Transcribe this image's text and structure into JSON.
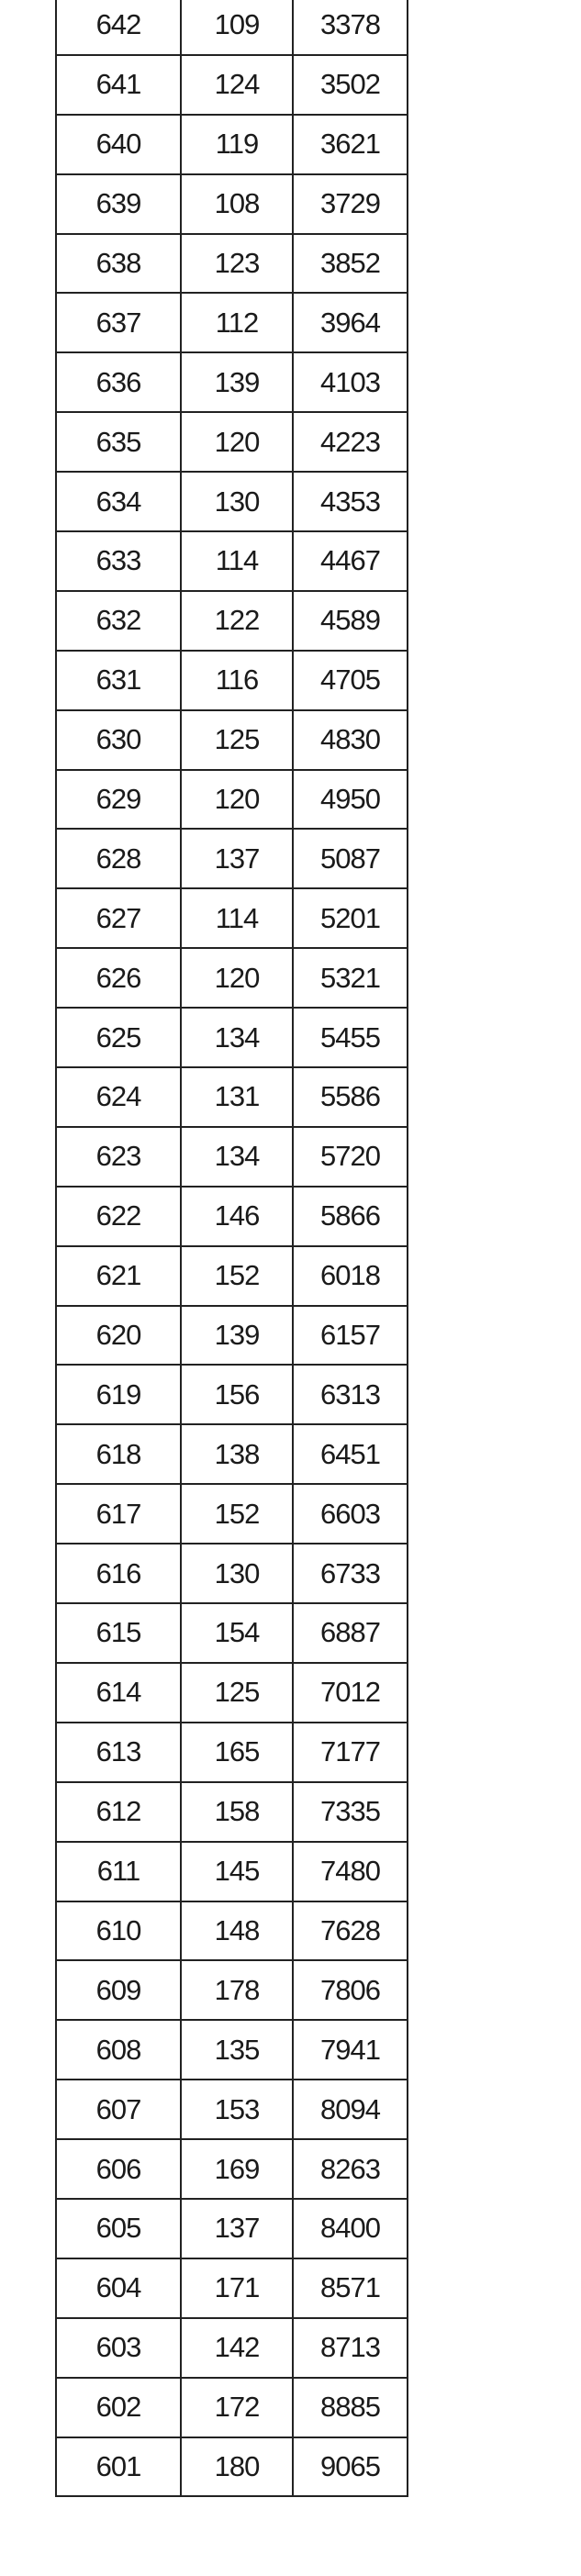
{
  "table": {
    "rows": [
      [
        "642",
        "109",
        "3378"
      ],
      [
        "641",
        "124",
        "3502"
      ],
      [
        "640",
        "119",
        "3621"
      ],
      [
        "639",
        "108",
        "3729"
      ],
      [
        "638",
        "123",
        "3852"
      ],
      [
        "637",
        "112",
        "3964"
      ],
      [
        "636",
        "139",
        "4103"
      ],
      [
        "635",
        "120",
        "4223"
      ],
      [
        "634",
        "130",
        "4353"
      ],
      [
        "633",
        "114",
        "4467"
      ],
      [
        "632",
        "122",
        "4589"
      ],
      [
        "631",
        "116",
        "4705"
      ],
      [
        "630",
        "125",
        "4830"
      ],
      [
        "629",
        "120",
        "4950"
      ],
      [
        "628",
        "137",
        "5087"
      ],
      [
        "627",
        "114",
        "5201"
      ],
      [
        "626",
        "120",
        "5321"
      ],
      [
        "625",
        "134",
        "5455"
      ],
      [
        "624",
        "131",
        "5586"
      ],
      [
        "623",
        "134",
        "5720"
      ],
      [
        "622",
        "146",
        "5866"
      ],
      [
        "621",
        "152",
        "6018"
      ],
      [
        "620",
        "139",
        "6157"
      ],
      [
        "619",
        "156",
        "6313"
      ],
      [
        "618",
        "138",
        "6451"
      ],
      [
        "617",
        "152",
        "6603"
      ],
      [
        "616",
        "130",
        "6733"
      ],
      [
        "615",
        "154",
        "6887"
      ],
      [
        "614",
        "125",
        "7012"
      ],
      [
        "613",
        "165",
        "7177"
      ],
      [
        "612",
        "158",
        "7335"
      ],
      [
        "611",
        "145",
        "7480"
      ],
      [
        "610",
        "148",
        "7628"
      ],
      [
        "609",
        "178",
        "7806"
      ],
      [
        "608",
        "135",
        "7941"
      ],
      [
        "607",
        "153",
        "8094"
      ],
      [
        "606",
        "169",
        "8263"
      ],
      [
        "605",
        "137",
        "8400"
      ],
      [
        "604",
        "171",
        "8571"
      ],
      [
        "603",
        "142",
        "8713"
      ],
      [
        "602",
        "172",
        "8885"
      ],
      [
        "601",
        "180",
        "9065"
      ]
    ]
  }
}
